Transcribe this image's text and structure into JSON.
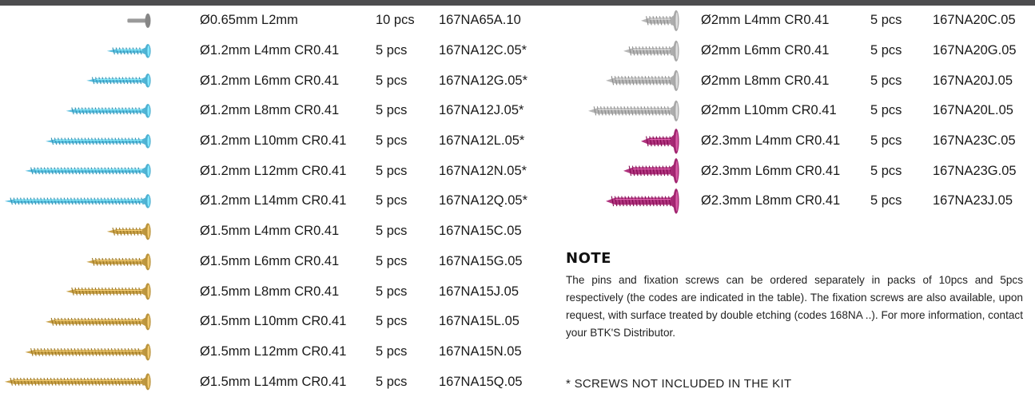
{
  "colors": {
    "top_bar": "#4d4d4f",
    "blue": "#5bbfe0",
    "gold": "#c9a24a",
    "silver": "#b7b7b7",
    "magenta": "#b0347e",
    "pin": "#9a9a9a"
  },
  "left_rows": [
    {
      "desc": "Ø0.65mm L2mm",
      "qty": "10 pcs",
      "code": "167NA65A.10",
      "icon": "pin-icon",
      "color": "pin",
      "length": 2
    },
    {
      "desc": "Ø1.2mm L4mm CR0.41",
      "qty": "5 pcs",
      "code": "167NA12C.05*",
      "icon": "screw-icon",
      "color": "blue",
      "length": 4
    },
    {
      "desc": "Ø1.2mm L6mm CR0.41",
      "qty": "5 pcs",
      "code": "167NA12G.05*",
      "icon": "screw-icon",
      "color": "blue",
      "length": 6
    },
    {
      "desc": "Ø1.2mm L8mm CR0.41",
      "qty": "5 pcs",
      "code": "167NA12J.05*",
      "icon": "screw-icon",
      "color": "blue",
      "length": 8
    },
    {
      "desc": "Ø1.2mm L10mm CR0.41",
      "qty": "5 pcs",
      "code": "167NA12L.05*",
      "icon": "screw-icon",
      "color": "blue",
      "length": 10
    },
    {
      "desc": "Ø1.2mm L12mm CR0.41",
      "qty": "5 pcs",
      "code": "167NA12N.05*",
      "icon": "screw-icon",
      "color": "blue",
      "length": 12
    },
    {
      "desc": "Ø1.2mm L14mm CR0.41",
      "qty": "5 pcs",
      "code": "167NA12Q.05*",
      "icon": "screw-icon",
      "color": "blue",
      "length": 14
    },
    {
      "desc": "Ø1.5mm L4mm CR0.41",
      "qty": "5 pcs",
      "code": "167NA15C.05",
      "icon": "screw-icon",
      "color": "gold",
      "length": 4
    },
    {
      "desc": "Ø1.5mm L6mm CR0.41",
      "qty": "5 pcs",
      "code": "167NA15G.05",
      "icon": "screw-icon",
      "color": "gold",
      "length": 6
    },
    {
      "desc": "Ø1.5mm L8mm CR0.41",
      "qty": "5 pcs",
      "code": "167NA15J.05",
      "icon": "screw-icon",
      "color": "gold",
      "length": 8
    },
    {
      "desc": "Ø1.5mm L10mm CR0.41",
      "qty": "5 pcs",
      "code": "167NA15L.05",
      "icon": "screw-icon",
      "color": "gold",
      "length": 10
    },
    {
      "desc": "Ø1.5mm L12mm CR0.41",
      "qty": "5 pcs",
      "code": "167NA15N.05",
      "icon": "screw-icon",
      "color": "gold",
      "length": 12
    },
    {
      "desc": "Ø1.5mm L14mm CR0.41",
      "qty": "5 pcs",
      "code": "167NA15Q.05",
      "icon": "screw-icon",
      "color": "gold",
      "length": 14
    }
  ],
  "right_rows": [
    {
      "desc": "Ø2mm L4mm CR0.41",
      "qty": "5 pcs",
      "code": "167NA20C.05",
      "icon": "screw-icon",
      "color": "silver",
      "length": 4
    },
    {
      "desc": "Ø2mm L6mm CR0.41",
      "qty": "5 pcs",
      "code": "167NA20G.05",
      "icon": "screw-icon",
      "color": "silver",
      "length": 6
    },
    {
      "desc": "Ø2mm L8mm CR0.41",
      "qty": "5 pcs",
      "code": "167NA20J.05",
      "icon": "screw-icon",
      "color": "silver",
      "length": 8
    },
    {
      "desc": "Ø2mm L10mm CR0.41",
      "qty": "5 pcs",
      "code": "167NA20L.05",
      "icon": "screw-icon",
      "color": "silver",
      "length": 10
    },
    {
      "desc": "Ø2.3mm L4mm CR0.41",
      "qty": "5 pcs",
      "code": "167NA23C.05",
      "icon": "screw-icon",
      "color": "magenta",
      "length": 4
    },
    {
      "desc": "Ø2.3mm L6mm CR0.41",
      "qty": "5 pcs",
      "code": "167NA23G.05",
      "icon": "screw-icon",
      "color": "magenta",
      "length": 6
    },
    {
      "desc": "Ø2.3mm L8mm CR0.41",
      "qty": "5 pcs",
      "code": "167NA23J.05",
      "icon": "screw-icon",
      "color": "magenta",
      "length": 8
    }
  ],
  "note": {
    "title": "NOTE",
    "body": "The pins and fixation screws can be ordered separately in packs of 10pcs and 5pcs respectively (the codes are indicated in the table). The fixation screws are also available, upon request, with surface treated by double etching (codes 168NA ..). For more information, contact your BTK'S Distributor."
  },
  "footnote": "* SCREWS NOT INCLUDED IN THE KIT"
}
